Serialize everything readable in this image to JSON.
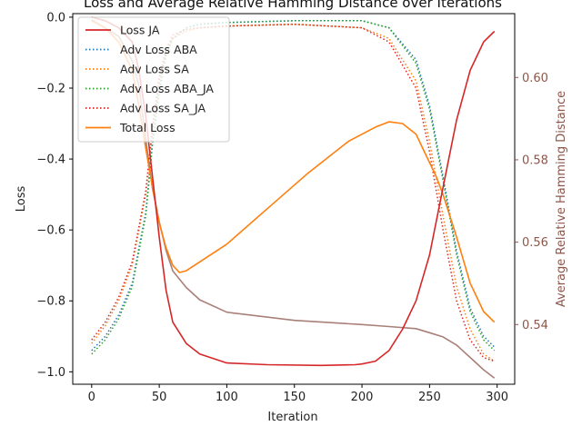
{
  "chart_data": {
    "type": "line",
    "title": "Loss and Average Relative Hamming Distance over Iterations",
    "xlabel": "Iteration",
    "ylabel": "Loss",
    "y2label": "Average Relative Hamming Distance",
    "xlim": [
      -14,
      313
    ],
    "ylim": [
      -1.035,
      0.01
    ],
    "y2lim": [
      0.5255,
      0.6155
    ],
    "x_ticks": [
      0,
      50,
      100,
      150,
      200,
      250,
      300
    ],
    "y_ticks": [
      -1.0,
      -0.8,
      -0.6,
      -0.4,
      -0.2,
      0.0
    ],
    "y2_ticks": [
      0.54,
      0.56,
      0.58,
      0.6
    ],
    "grid": false,
    "legend_position": "top-left",
    "colors": {
      "loss_ja": "#d62728",
      "adv_aba": "#1f77b4",
      "adv_sa": "#ff7f0e",
      "adv_aba_ja": "#2ca02c",
      "adv_sa_ja": "#d62728",
      "total": "#ff7f0e",
      "hamming": "#8c564b",
      "y2_axis_text": "#8c564b"
    },
    "series": [
      {
        "name": "Loss JA",
        "style": "solid",
        "x": [
          0,
          10,
          20,
          30,
          35,
          40,
          45,
          50,
          55,
          60,
          70,
          80,
          100,
          130,
          170,
          195,
          200,
          210,
          220,
          230,
          240,
          250,
          260,
          270,
          280,
          290,
          298
        ],
        "values": [
          0.0,
          -0.01,
          -0.03,
          -0.07,
          -0.15,
          -0.28,
          -0.45,
          -0.62,
          -0.77,
          -0.86,
          -0.92,
          -0.95,
          -0.975,
          -0.98,
          -0.982,
          -0.98,
          -0.978,
          -0.97,
          -0.94,
          -0.88,
          -0.8,
          -0.67,
          -0.48,
          -0.29,
          -0.15,
          -0.07,
          -0.04
        ]
      },
      {
        "name": "Adv Loss ABA",
        "style": "dotted",
        "x": [
          0,
          10,
          20,
          30,
          40,
          45,
          50,
          55,
          60,
          70,
          80,
          100,
          150,
          200,
          220,
          240,
          250,
          260,
          270,
          280,
          290,
          298
        ],
        "values": [
          -0.94,
          -0.9,
          -0.84,
          -0.75,
          -0.55,
          -0.35,
          -0.2,
          -0.1,
          -0.06,
          -0.03,
          -0.02,
          -0.015,
          -0.01,
          -0.01,
          -0.03,
          -0.12,
          -0.25,
          -0.45,
          -0.66,
          -0.82,
          -0.9,
          -0.93
        ]
      },
      {
        "name": "Adv Loss SA",
        "style": "dotted",
        "x": [
          0,
          10,
          20,
          30,
          40,
          45,
          50,
          55,
          60,
          70,
          80,
          100,
          150,
          200,
          220,
          240,
          250,
          260,
          270,
          280,
          290,
          298
        ],
        "values": [
          -0.92,
          -0.87,
          -0.8,
          -0.7,
          -0.5,
          -0.32,
          -0.18,
          -0.1,
          -0.06,
          -0.04,
          -0.03,
          -0.025,
          -0.02,
          -0.03,
          -0.06,
          -0.18,
          -0.35,
          -0.56,
          -0.76,
          -0.88,
          -0.95,
          -0.97
        ]
      },
      {
        "name": "Adv Loss ABA_JA",
        "style": "dotted",
        "x": [
          0,
          10,
          20,
          30,
          40,
          45,
          50,
          55,
          60,
          70,
          80,
          100,
          150,
          200,
          220,
          240,
          250,
          260,
          270,
          280,
          290,
          298
        ],
        "values": [
          -0.95,
          -0.91,
          -0.85,
          -0.76,
          -0.56,
          -0.36,
          -0.21,
          -0.11,
          -0.06,
          -0.03,
          -0.02,
          -0.015,
          -0.01,
          -0.01,
          -0.03,
          -0.13,
          -0.26,
          -0.46,
          -0.67,
          -0.83,
          -0.91,
          -0.94
        ]
      },
      {
        "name": "Adv Loss SA_JA",
        "style": "dotted",
        "x": [
          0,
          10,
          20,
          30,
          40,
          45,
          50,
          55,
          60,
          70,
          80,
          100,
          150,
          200,
          220,
          240,
          250,
          260,
          270,
          280,
          290,
          298
        ],
        "values": [
          -0.91,
          -0.86,
          -0.79,
          -0.69,
          -0.49,
          -0.31,
          -0.17,
          -0.09,
          -0.05,
          -0.035,
          -0.03,
          -0.025,
          -0.02,
          -0.03,
          -0.07,
          -0.2,
          -0.38,
          -0.6,
          -0.8,
          -0.91,
          -0.96,
          -0.97
        ]
      },
      {
        "name": "Total Loss",
        "style": "solid",
        "x": [
          0,
          10,
          20,
          30,
          35,
          40,
          45,
          50,
          55,
          60,
          65,
          70,
          80,
          100,
          130,
          160,
          190,
          210,
          220,
          230,
          240,
          245,
          250,
          255,
          260,
          270,
          280,
          290,
          298
        ],
        "values": [
          -0.01,
          -0.03,
          -0.07,
          -0.15,
          -0.25,
          -0.37,
          -0.48,
          -0.58,
          -0.65,
          -0.7,
          -0.72,
          -0.715,
          -0.69,
          -0.64,
          -0.54,
          -0.44,
          -0.35,
          -0.31,
          -0.295,
          -0.3,
          -0.33,
          -0.37,
          -0.41,
          -0.45,
          -0.5,
          -0.62,
          -0.75,
          -0.83,
          -0.86
        ]
      },
      {
        "name": "Average Relative Hamming Distance",
        "style": "solid",
        "axis": "right",
        "x": [
          0,
          10,
          20,
          30,
          35,
          40,
          45,
          50,
          55,
          60,
          70,
          80,
          100,
          150,
          200,
          220,
          240,
          250,
          260,
          270,
          280,
          290,
          298
        ],
        "values": [
          0.614,
          0.612,
          0.61,
          0.604,
          0.598,
          0.585,
          0.573,
          0.565,
          0.558,
          0.553,
          0.549,
          0.546,
          0.543,
          0.541,
          0.54,
          0.5395,
          0.539,
          0.538,
          0.537,
          0.535,
          0.532,
          0.529,
          0.527
        ]
      }
    ]
  }
}
